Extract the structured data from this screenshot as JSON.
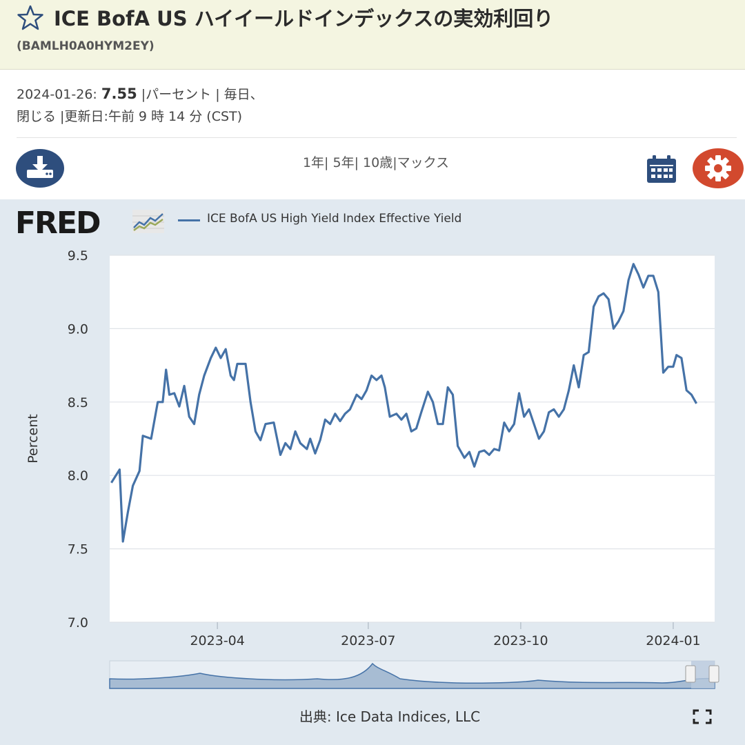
{
  "header": {
    "title": "ICE BofA US ハイイールドインデックスの実効利回り",
    "series_id": "(BAMLH0A0HYM2EY)"
  },
  "info": {
    "date": "2024-01-26:",
    "value": "7.55",
    "line1_rest": "|パーセント | 毎日、",
    "line2": "閉じる |更新日:午前 9 時 14 分 (CST)"
  },
  "ranges": [
    "1年",
    "5年",
    "10歳",
    "マックス"
  ],
  "legend": {
    "logo": "FRED",
    "series_label": "ICE BofA US High Yield Index Effective Yield"
  },
  "source": "出典: Ice Data Indices, LLC",
  "icons": {
    "star": "star-icon",
    "download": "download-icon",
    "calendar": "calendar-icon",
    "settings": "gear-icon",
    "fullscreen": "fullscreen-icon"
  },
  "colors": {
    "series": "#4572a7",
    "header_bg": "#f4f5e1",
    "chart_bg": "#e1e9f0",
    "download_btn": "#2e4e7d",
    "settings_btn": "#d2492e"
  },
  "chart_data": {
    "type": "line",
    "title": "",
    "xlabel": "",
    "ylabel": "Percent",
    "ylim": [
      7.0,
      9.5
    ],
    "yticks": [
      "7.0",
      "7.5",
      "8.0",
      "8.5",
      "9.0",
      "9.5"
    ],
    "xticks": [
      "2023-04",
      "2023-07",
      "2023-10",
      "2024-01"
    ],
    "series": [
      {
        "name": "ICE BofA US High Yield Index Effective Yield",
        "points": [
          [
            "2023-01-27",
            7.95
          ],
          [
            "2023-02-01",
            8.04
          ],
          [
            "2023-02-03",
            7.55
          ],
          [
            "2023-02-06",
            7.75
          ],
          [
            "2023-02-09",
            7.93
          ],
          [
            "2023-02-13",
            8.03
          ],
          [
            "2023-02-15",
            8.27
          ],
          [
            "2023-02-20",
            8.25
          ],
          [
            "2023-02-24",
            8.5
          ],
          [
            "2023-02-27",
            8.5
          ],
          [
            "2023-03-01",
            8.72
          ],
          [
            "2023-03-03",
            8.55
          ],
          [
            "2023-03-06",
            8.56
          ],
          [
            "2023-03-09",
            8.47
          ],
          [
            "2023-03-12",
            8.61
          ],
          [
            "2023-03-15",
            8.4
          ],
          [
            "2023-03-18",
            8.35
          ],
          [
            "2023-03-21",
            8.55
          ],
          [
            "2023-03-24",
            8.68
          ],
          [
            "2023-03-28",
            8.8
          ],
          [
            "2023-03-31",
            8.87
          ],
          [
            "2023-04-03",
            8.8
          ],
          [
            "2023-04-06",
            8.86
          ],
          [
            "2023-04-09",
            8.68
          ],
          [
            "2023-04-11",
            8.65
          ],
          [
            "2023-04-13",
            8.76
          ],
          [
            "2023-04-18",
            8.76
          ],
          [
            "2023-04-21",
            8.5
          ],
          [
            "2023-04-24",
            8.3
          ],
          [
            "2023-04-27",
            8.24
          ],
          [
            "2023-04-30",
            8.35
          ],
          [
            "2023-05-05",
            8.36
          ],
          [
            "2023-05-09",
            8.14
          ],
          [
            "2023-05-12",
            8.22
          ],
          [
            "2023-05-15",
            8.18
          ],
          [
            "2023-05-18",
            8.3
          ],
          [
            "2023-05-21",
            8.22
          ],
          [
            "2023-05-25",
            8.18
          ],
          [
            "2023-05-27",
            8.25
          ],
          [
            "2023-05-30",
            8.15
          ],
          [
            "2023-06-02",
            8.24
          ],
          [
            "2023-06-05",
            8.38
          ],
          [
            "2023-06-08",
            8.35
          ],
          [
            "2023-06-11",
            8.42
          ],
          [
            "2023-06-14",
            8.37
          ],
          [
            "2023-06-17",
            8.42
          ],
          [
            "2023-06-20",
            8.45
          ],
          [
            "2023-06-24",
            8.55
          ],
          [
            "2023-06-27",
            8.52
          ],
          [
            "2023-06-30",
            8.58
          ],
          [
            "2023-07-03",
            8.68
          ],
          [
            "2023-07-06",
            8.65
          ],
          [
            "2023-07-09",
            8.68
          ],
          [
            "2023-07-11",
            8.6
          ],
          [
            "2023-07-14",
            8.4
          ],
          [
            "2023-07-18",
            8.42
          ],
          [
            "2023-07-21",
            8.38
          ],
          [
            "2023-07-24",
            8.42
          ],
          [
            "2023-07-27",
            8.3
          ],
          [
            "2023-07-30",
            8.32
          ],
          [
            "2023-08-02",
            8.43
          ],
          [
            "2023-08-06",
            8.57
          ],
          [
            "2023-08-09",
            8.5
          ],
          [
            "2023-08-12",
            8.35
          ],
          [
            "2023-08-15",
            8.35
          ],
          [
            "2023-08-18",
            8.6
          ],
          [
            "2023-08-21",
            8.55
          ],
          [
            "2023-08-24",
            8.2
          ],
          [
            "2023-08-28",
            8.12
          ],
          [
            "2023-08-31",
            8.16
          ],
          [
            "2023-09-03",
            8.06
          ],
          [
            "2023-09-06",
            8.16
          ],
          [
            "2023-09-09",
            8.17
          ],
          [
            "2023-09-12",
            8.14
          ],
          [
            "2023-09-15",
            8.18
          ],
          [
            "2023-09-18",
            8.17
          ],
          [
            "2023-09-21",
            8.36
          ],
          [
            "2023-09-24",
            8.3
          ],
          [
            "2023-09-27",
            8.35
          ],
          [
            "2023-09-30",
            8.56
          ],
          [
            "2023-10-03",
            8.4
          ],
          [
            "2023-10-06",
            8.45
          ],
          [
            "2023-10-09",
            8.35
          ],
          [
            "2023-10-12",
            8.25
          ],
          [
            "2023-10-15",
            8.3
          ],
          [
            "2023-10-18",
            8.43
          ],
          [
            "2023-10-21",
            8.45
          ],
          [
            "2023-10-24",
            8.4
          ],
          [
            "2023-10-27",
            8.45
          ],
          [
            "2023-10-30",
            8.58
          ],
          [
            "2023-11-02",
            8.75
          ],
          [
            "2023-11-05",
            8.6
          ],
          [
            "2023-11-08",
            8.82
          ],
          [
            "2023-11-11",
            8.84
          ],
          [
            "2023-11-14",
            9.15
          ],
          [
            "2023-11-17",
            9.22
          ],
          [
            "2023-11-20",
            9.24
          ],
          [
            "2023-11-23",
            9.2
          ],
          [
            "2023-11-26",
            9.0
          ],
          [
            "2023-11-29",
            9.05
          ],
          [
            "2023-12-02",
            9.12
          ],
          [
            "2023-12-05",
            9.33
          ],
          [
            "2023-12-08",
            9.44
          ],
          [
            "2023-12-11",
            9.37
          ],
          [
            "2023-12-14",
            9.28
          ],
          [
            "2023-12-17",
            9.36
          ],
          [
            "2023-12-20",
            9.36
          ],
          [
            "2023-12-23",
            9.25
          ],
          [
            "2023-12-26",
            8.7
          ],
          [
            "2023-12-29",
            8.74
          ],
          [
            "2024-01-01",
            8.74
          ],
          [
            "2024-01-03",
            8.82
          ],
          [
            "2024-01-06",
            8.8
          ],
          [
            "2024-01-09",
            8.58
          ],
          [
            "2024-01-12",
            8.55
          ],
          [
            "2024-01-15",
            8.49
          ]
        ]
      }
    ]
  }
}
